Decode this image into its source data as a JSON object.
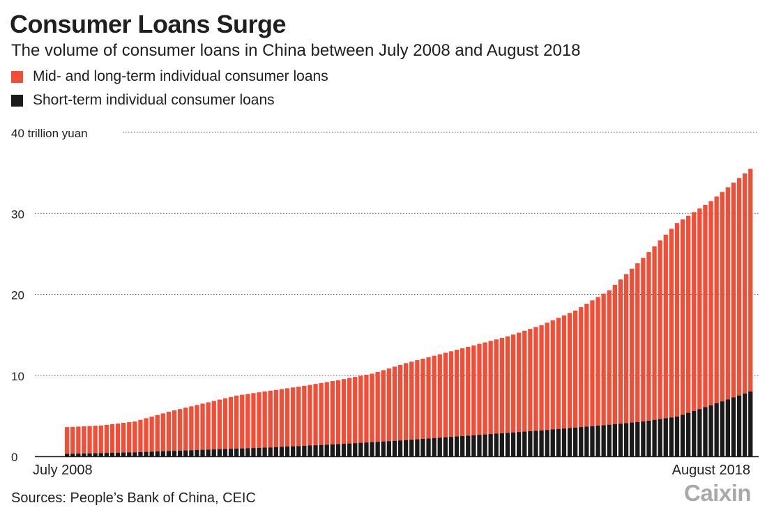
{
  "header": {
    "title": "Consumer Loans Surge",
    "subtitle": "The volume of consumer loans in China between July 2008 and August 2018"
  },
  "legend": [
    {
      "label": "Mid- and long-term individual consumer loans",
      "color": "#f04e37"
    },
    {
      "label": "Short-term individual consumer loans",
      "color": "#1a1a1a"
    }
  ],
  "footer": {
    "source": "Sources: People’s Bank of China, CEIC",
    "logo": "Caixin"
  },
  "chart_data": {
    "type": "bar",
    "stacked": true,
    "ylabel": "trillion yuan",
    "ylim": [
      0,
      40
    ],
    "yticks": [
      {
        "value": 0,
        "label": "0"
      },
      {
        "value": 10,
        "label": "10"
      },
      {
        "value": 20,
        "label": "20"
      },
      {
        "value": 30,
        "label": "30"
      },
      {
        "value": 40,
        "label": "40 trillion yuan"
      }
    ],
    "xtick_labels": [
      "July 2008",
      "August 2018"
    ],
    "grid": true,
    "grid_style": "dotted",
    "x_start": "2008-07",
    "x_end": "2018-08",
    "total_anchors": [
      [
        0,
        3.6
      ],
      [
        6,
        3.8
      ],
      [
        12,
        4.3
      ],
      [
        18,
        5.5
      ],
      [
        24,
        6.5
      ],
      [
        30,
        7.5
      ],
      [
        36,
        8.1
      ],
      [
        42,
        8.7
      ],
      [
        48,
        9.4
      ],
      [
        54,
        10.2
      ],
      [
        60,
        11.5
      ],
      [
        66,
        12.6
      ],
      [
        72,
        13.7
      ],
      [
        78,
        14.8
      ],
      [
        84,
        16.2
      ],
      [
        90,
        18.0
      ],
      [
        96,
        20.5
      ],
      [
        102,
        24.5
      ],
      [
        108,
        28.8
      ],
      [
        114,
        31.5
      ],
      [
        121,
        35.5
      ]
    ],
    "short_term_anchors": [
      [
        0,
        0.3
      ],
      [
        12,
        0.5
      ],
      [
        24,
        0.8
      ],
      [
        36,
        1.1
      ],
      [
        48,
        1.5
      ],
      [
        60,
        2.0
      ],
      [
        72,
        2.6
      ],
      [
        84,
        3.2
      ],
      [
        96,
        3.9
      ],
      [
        102,
        4.3
      ],
      [
        108,
        4.9
      ],
      [
        114,
        6.3
      ],
      [
        121,
        8.0
      ]
    ],
    "series": [
      {
        "name": "Mid- and long-term individual consumer loans",
        "color": "#f04e37"
      },
      {
        "name": "Short-term individual consumer loans",
        "color": "#1a1a1a"
      }
    ]
  }
}
